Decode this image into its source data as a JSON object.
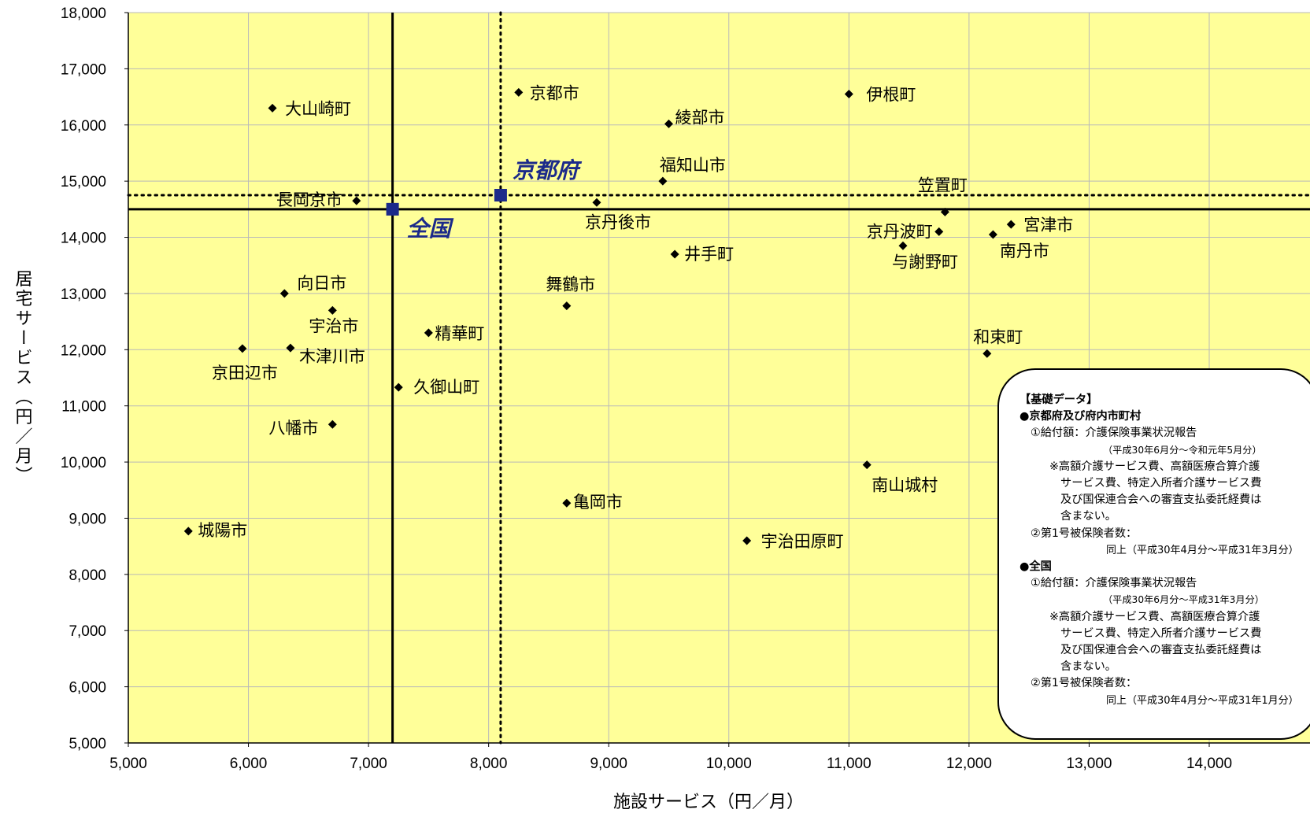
{
  "chart_data": {
    "type": "scatter",
    "xlabel": "施設サービス（円／月）",
    "ylabel": "居宅サービス（円／月）",
    "xlim": [
      5000,
      14500
    ],
    "ylim": [
      5000,
      18000
    ],
    "x_ticks": [
      "5,000",
      "6,000",
      "7,000",
      "8,000",
      "9,000",
      "10,000",
      "11,000",
      "12,000",
      "13,000",
      "14,000"
    ],
    "y_ticks": [
      "5,000",
      "6,000",
      "7,000",
      "8,000",
      "9,000",
      "10,000",
      "11,000",
      "12,000",
      "13,000",
      "14,000",
      "15,000",
      "16,000",
      "17,000",
      "18,000"
    ],
    "plot_background": "#ffff99",
    "grid": true,
    "points": [
      {
        "label": "大山崎町",
        "x": 6200,
        "y": 16300
      },
      {
        "label": "京都市",
        "x": 8250,
        "y": 16580
      },
      {
        "label": "伊根町",
        "x": 11000,
        "y": 16550
      },
      {
        "label": "綾部市",
        "x": 9500,
        "y": 16020
      },
      {
        "label": "福知山市",
        "x": 9450,
        "y": 15000
      },
      {
        "label": "笠置町",
        "x": 11800,
        "y": 14450
      },
      {
        "label": "長岡京市",
        "x": 6900,
        "y": 14650
      },
      {
        "label": "京丹後市",
        "x": 8900,
        "y": 14620
      },
      {
        "label": "京丹波町",
        "x": 11750,
        "y": 14100
      },
      {
        "label": "宮津市",
        "x": 12350,
        "y": 14230
      },
      {
        "label": "南丹市",
        "x": 12200,
        "y": 14050
      },
      {
        "label": "与謝野町",
        "x": 11450,
        "y": 13850
      },
      {
        "label": "井手町",
        "x": 9550,
        "y": 13700
      },
      {
        "label": "向日市",
        "x": 6300,
        "y": 13000
      },
      {
        "label": "舞鶴市",
        "x": 8650,
        "y": 12780
      },
      {
        "label": "宇治市",
        "x": 6700,
        "y": 12700
      },
      {
        "label": "精華町",
        "x": 7500,
        "y": 12300
      },
      {
        "label": "京田辺市",
        "x": 5950,
        "y": 12020
      },
      {
        "label": "木津川市",
        "x": 6350,
        "y": 12030
      },
      {
        "label": "和束町",
        "x": 12150,
        "y": 11930
      },
      {
        "label": "久御山町",
        "x": 7250,
        "y": 11330
      },
      {
        "label": "八幡市",
        "x": 6700,
        "y": 10670
      },
      {
        "label": "南山城村",
        "x": 11150,
        "y": 9950
      },
      {
        "label": "亀岡市",
        "x": 8650,
        "y": 9270
      },
      {
        "label": "城陽市",
        "x": 5500,
        "y": 8770
      },
      {
        "label": "宇治田原町",
        "x": 10150,
        "y": 8600
      }
    ],
    "highlights": [
      {
        "label": "京都府",
        "x": 8100,
        "y": 14750,
        "line_style": "dotted",
        "color": "#1c2a8a"
      },
      {
        "label": "全国",
        "x": 7200,
        "y": 14500,
        "line_style": "solid",
        "color": "#1c2a8a"
      }
    ]
  },
  "info_box": {
    "title": "【基礎データ】",
    "kyoto": {
      "heading": "●京都府及び府内市町村",
      "line1": "①給付額：介護保険事業状況報告",
      "line1_period": "（平成30年6月分～令和元年5月分）",
      "note1": "※高額介護サービス費、高額医療合算介護",
      "note2": "サービス費、特定入所者介護サービス費",
      "note3": "及び国保連合会への審査支払委託経費は",
      "note4": "含まない。",
      "line2": "②第1号被保険者数：",
      "line2_period": "同上（平成30年4月分～平成31年3月分）"
    },
    "national": {
      "heading": "●全国",
      "line1": "①給付額：介護保険事業状況報告",
      "line1_period": "（平成30年6月分～平成31年3月分）",
      "note1": "※高額介護サービス費、高額医療合算介護",
      "note2": "サービス費、特定入所者介護サービス費",
      "note3": "及び国保連合会への審査支払委託経費は",
      "note4": "含まない。",
      "line2": "②第1号被保険者数：",
      "line2_period": "同上（平成30年4月分～平成31年1月分）"
    }
  }
}
